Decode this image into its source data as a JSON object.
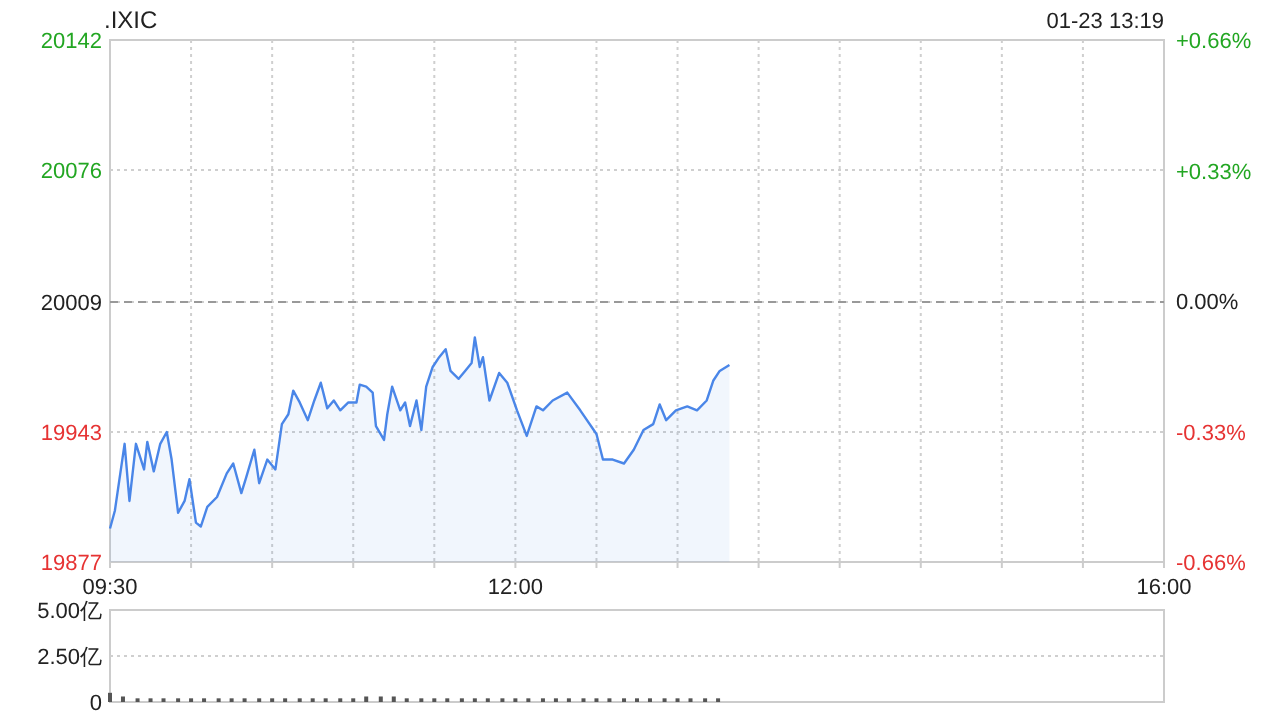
{
  "chart_data": [
    {
      "type": "area",
      "title": ".IXIC",
      "subtitle": "01-23 13:19",
      "xlim": [
        9.5,
        16
      ],
      "ylim": [
        19877,
        20142
      ],
      "y2lim": [
        -0.66,
        0.66
      ],
      "grid": true,
      "xticks": [
        {
          "value": 9.5,
          "label": "09:30"
        },
        {
          "value": 10,
          "label": null
        },
        {
          "value": 10.5,
          "label": null
        },
        {
          "value": 11,
          "label": null
        },
        {
          "value": 11.5,
          "label": null
        },
        {
          "value": 12,
          "label": "12:00"
        },
        {
          "value": 12.5,
          "label": null
        },
        {
          "value": 13,
          "label": null
        },
        {
          "value": 13.5,
          "label": null
        },
        {
          "value": 14,
          "label": null
        },
        {
          "value": 14.5,
          "label": null
        },
        {
          "value": 15,
          "label": null
        },
        {
          "value": 15.5,
          "label": null
        },
        {
          "value": 16,
          "label": "16:00"
        }
      ],
      "yticks": [
        19877,
        19943,
        20009,
        20076,
        20142
      ],
      "y2ticks": [
        {
          "value": -0.66,
          "label": "-0.66%"
        },
        {
          "value": -0.33,
          "label": "-0.33%"
        },
        {
          "value": 0,
          "label": "0.00%"
        },
        {
          "value": 0.33,
          "label": "+0.33%"
        },
        {
          "value": 0.66,
          "label": "+0.66%"
        }
      ],
      "ref_lines": [
        {
          "axis": "y",
          "value": 20009,
          "color": "#999999",
          "line_style": "dashed"
        }
      ],
      "series": [
        {
          "color": "#4a86e8",
          "x": [
            9.5,
            9.53,
            9.59,
            9.62,
            9.66,
            9.71,
            9.73,
            9.77,
            9.81,
            9.85,
            9.88,
            9.92,
            9.96,
            9.99,
            10.03,
            10.06,
            10.1,
            10.16,
            10.22,
            10.26,
            10.31,
            10.34,
            10.39,
            10.42,
            10.47,
            10.52,
            10.56,
            10.6,
            10.63,
            10.67,
            10.72,
            10.76,
            10.8,
            10.84,
            10.88,
            10.92,
            10.97,
            11.02,
            11.04,
            11.08,
            11.12,
            11.14,
            11.19,
            11.21,
            11.24,
            11.29,
            11.32,
            11.35,
            11.39,
            11.42,
            11.45,
            11.49,
            11.53,
            11.57,
            11.6,
            11.65,
            11.69,
            11.73,
            11.75,
            11.78,
            11.8,
            11.84,
            11.9,
            11.95,
            12.01,
            12.07,
            12.13,
            12.17,
            12.23,
            12.32,
            12.4,
            12.5,
            12.54,
            12.6,
            12.67,
            12.73,
            12.79,
            12.85,
            12.89,
            12.93,
            12.99,
            13.06,
            13.12,
            13.18,
            13.22,
            13.26,
            13.32
          ],
          "values": [
            19894,
            19903,
            19937,
            19908,
            19937,
            19924,
            19938,
            19923,
            19937,
            19943,
            19929,
            19902,
            19908,
            19919,
            19897,
            19895,
            19905,
            19910,
            19922,
            19927,
            19912,
            19920,
            19934,
            19917,
            19929,
            19924,
            19947,
            19952,
            19964,
            19958,
            19949,
            19959,
            19968,
            19955,
            19959,
            19954,
            19958,
            19958,
            19967,
            19966,
            19963,
            19946,
            19939,
            19952,
            19966,
            19954,
            19958,
            19946,
            19959,
            19944,
            19966,
            19976,
            19981,
            19985,
            19974,
            19970,
            19974,
            19978,
            19991,
            19976,
            19981,
            19959,
            19973,
            19968,
            19954,
            19941,
            19956,
            19954,
            19959,
            19963,
            19954,
            19942,
            19929,
            19929,
            19927,
            19934,
            19944,
            19947,
            19957,
            19949,
            19954,
            19956,
            19954,
            19959,
            19969,
            19974,
            19977
          ]
        }
      ]
    },
    {
      "type": "bar",
      "xlim": [
        9.5,
        16
      ],
      "ylim": [
        0,
        5
      ],
      "grid": "y",
      "tick_labels": "y",
      "yticks": [
        {
          "value": 0,
          "label": "0"
        },
        {
          "value": 2.5,
          "label": "2.50亿"
        },
        {
          "value": 5,
          "label": "5.00亿"
        }
      ],
      "series": [
        {
          "color": "#555555",
          "x": [
            9.5,
            9.58,
            9.67,
            9.75,
            9.83,
            9.92,
            10,
            10.08,
            10.17,
            10.25,
            10.33,
            10.42,
            10.5,
            10.58,
            10.67,
            10.75,
            10.83,
            10.92,
            11,
            11.08,
            11.17,
            11.25,
            11.33,
            11.42,
            11.5,
            11.58,
            11.67,
            11.75,
            11.83,
            11.92,
            12,
            12.08,
            12.17,
            12.25,
            12.33,
            12.42,
            12.5,
            12.58,
            12.67,
            12.75,
            12.83,
            12.92,
            13,
            13.08,
            13.17,
            13.25
          ],
          "values": [
            0.5,
            0.3,
            0.2,
            0.2,
            0.2,
            0.2,
            0.2,
            0.2,
            0.2,
            0.2,
            0.2,
            0.2,
            0.2,
            0.2,
            0.2,
            0.2,
            0.2,
            0.2,
            0.2,
            0.3,
            0.3,
            0.3,
            0.2,
            0.2,
            0.2,
            0.2,
            0.2,
            0.2,
            0.2,
            0.2,
            0.2,
            0.2,
            0.2,
            0.2,
            0.2,
            0.2,
            0.2,
            0.2,
            0.2,
            0.2,
            0.2,
            0.2,
            0.2,
            0.2,
            0.2,
            0.2
          ]
        }
      ]
    }
  ]
}
